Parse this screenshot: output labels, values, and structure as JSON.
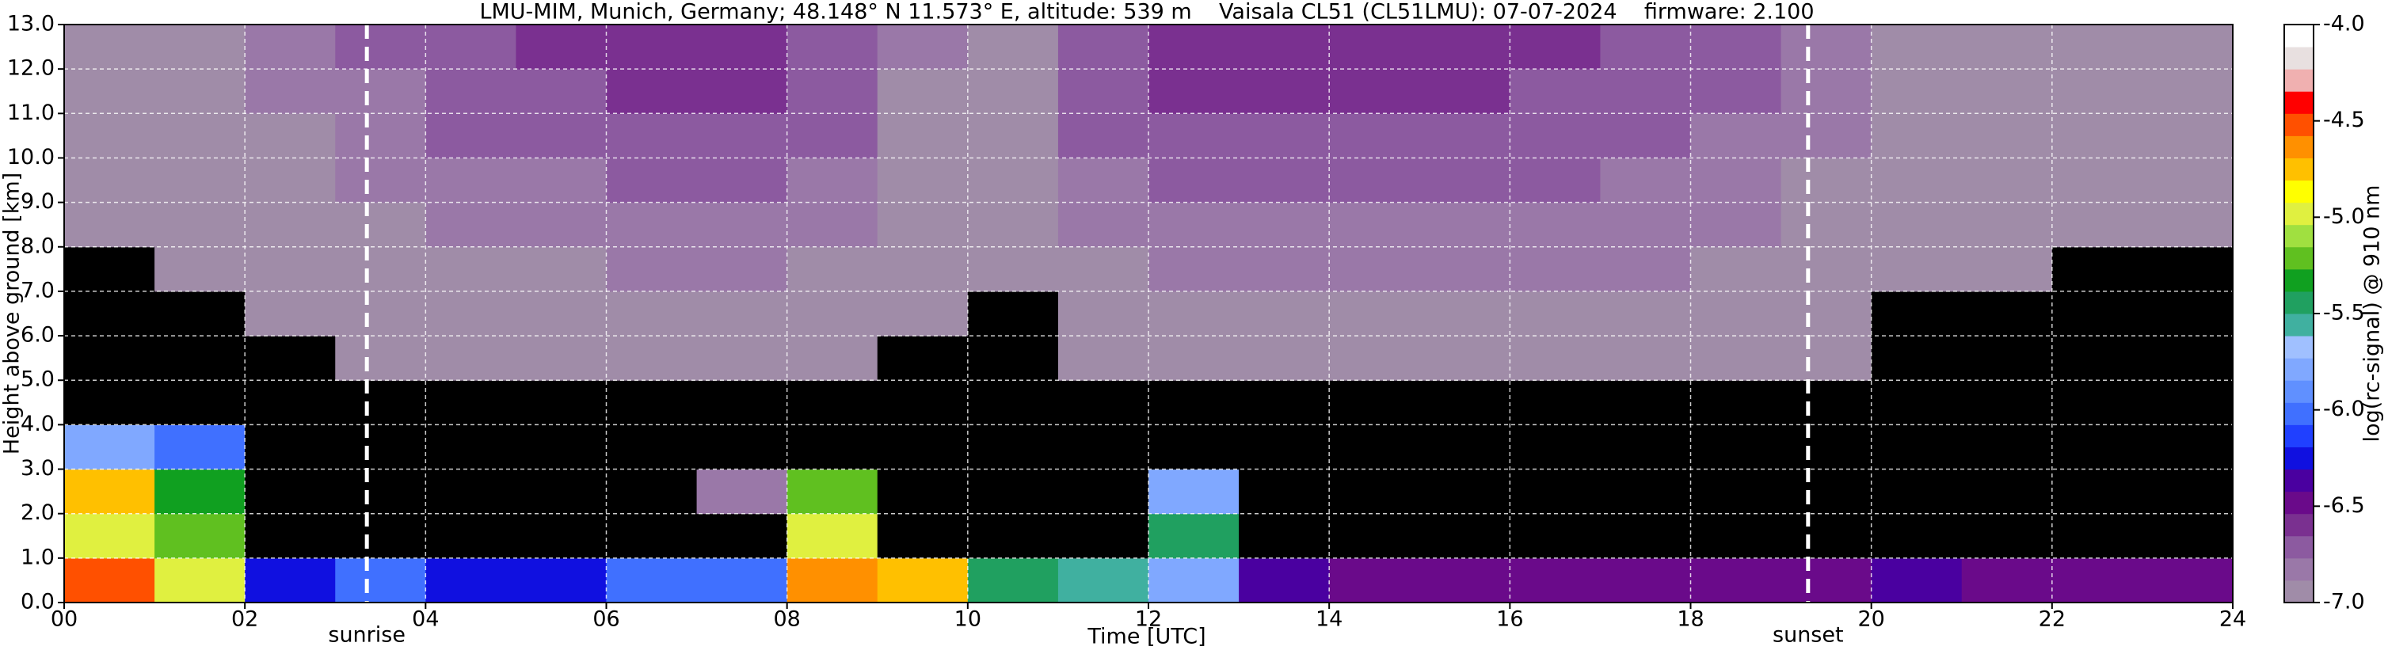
{
  "chart_data": {
    "type": "heatmap",
    "title": "LMU-MIM, Munich, Germany; 48.148° N 11.573° E, altitude: 539 m    Vaisala CL51 (CL51LMU): 07-07-2024    firmware: 2.100",
    "x_label": "Time [UTC]",
    "y_label": "Height above ground [km]",
    "colorbar_label": "log(rc-signal) @ 910 nm",
    "xlim": [
      0,
      24
    ],
    "xticks": [
      {
        "value": 0,
        "label": "00"
      },
      {
        "value": 2,
        "label": "02"
      },
      {
        "value": 4,
        "label": "04"
      },
      {
        "value": 6,
        "label": "06"
      },
      {
        "value": 8,
        "label": "08"
      },
      {
        "value": 10,
        "label": "10"
      },
      {
        "value": 12,
        "label": "12"
      },
      {
        "value": 14,
        "label": "14"
      },
      {
        "value": 16,
        "label": "16"
      },
      {
        "value": 18,
        "label": "18"
      },
      {
        "value": 20,
        "label": "20"
      },
      {
        "value": 22,
        "label": "22"
      },
      {
        "value": 24,
        "label": "24"
      }
    ],
    "ylim": [
      0,
      13
    ],
    "yticks": [
      {
        "value": 0,
        "label": "0.0"
      },
      {
        "value": 1,
        "label": "1.0"
      },
      {
        "value": 2,
        "label": "2.0"
      },
      {
        "value": 3,
        "label": "3.0"
      },
      {
        "value": 4,
        "label": "4.0"
      },
      {
        "value": 5,
        "label": "5.0"
      },
      {
        "value": 6,
        "label": "6.0"
      },
      {
        "value": 7,
        "label": "7.0"
      },
      {
        "value": 8,
        "label": "8.0"
      },
      {
        "value": 9,
        "label": "9.0"
      },
      {
        "value": 10,
        "label": "10.0"
      },
      {
        "value": 11,
        "label": "11.0"
      },
      {
        "value": 12,
        "label": "12.0"
      },
      {
        "value": 13,
        "label": "13.0"
      }
    ],
    "grid": true,
    "clim": [
      -7,
      -4
    ],
    "cbar_ticks": [
      {
        "value": -4,
        "label": "-4.0"
      },
      {
        "value": -4.5,
        "label": "-4.5"
      },
      {
        "value": -5,
        "label": "-5.0"
      },
      {
        "value": -5.5,
        "label": "-5.5"
      },
      {
        "value": -6,
        "label": "-6.0"
      },
      {
        "value": -6.5,
        "label": "-6.5"
      },
      {
        "value": -7,
        "label": "-7.0"
      }
    ],
    "under_color": "#000000",
    "colorscale": [
      "#a08ca8",
      "#9a78a8",
      "#8c5aa0",
      "#7a3090",
      "#6a0a8a",
      "#4a00a0",
      "#1010e0",
      "#2040ff",
      "#4070ff",
      "#6090ff",
      "#80a8ff",
      "#a0c0ff",
      "#40b0a0",
      "#20a060",
      "#10a020",
      "#60c020",
      "#a0e040",
      "#e0f040",
      "#ffff00",
      "#ffc000",
      "#ff9000",
      "#ff5000",
      "#ff0000",
      "#f0b0b0",
      "#e8e0e0",
      "#ffffff"
    ],
    "xbins": [
      0,
      1,
      2,
      3,
      4,
      5,
      6,
      7,
      8,
      9,
      10,
      11,
      12,
      13,
      14,
      15,
      16,
      17,
      18,
      19,
      20,
      21,
      22,
      23,
      24
    ],
    "ybins": [
      0,
      1,
      2,
      3,
      4,
      5,
      6,
      7,
      8,
      9,
      10,
      11,
      12,
      13
    ],
    "z": [
      [
        -4.5,
        -5.0,
        -6.2,
        -6.0,
        -6.3,
        -6.2,
        -6.0,
        -6.0,
        -4.6,
        -4.8,
        -5.5,
        -5.6,
        -5.8,
        -6.4,
        -6.5,
        -6.5,
        -6.5,
        -6.5,
        -6.5,
        -6.5,
        -6.4,
        -6.5,
        -6.5,
        -6.5
      ],
      [
        -5.0,
        -5.2,
        -7.5,
        -7.5,
        -7.5,
        -7.5,
        -7.5,
        -7.5,
        -5.0,
        -7.4,
        -7.5,
        -7.4,
        -5.5,
        -7.5,
        -7.5,
        -7.5,
        -7.5,
        -7.5,
        -7.5,
        -7.5,
        -7.5,
        -7.5,
        -7.5,
        -7.5
      ],
      [
        -4.8,
        -5.3,
        -7.4,
        -7.2,
        -7.4,
        -7.4,
        -7.4,
        -6.8,
        -5.2,
        -7.3,
        -7.4,
        -7.3,
        -5.8,
        -7.4,
        -7.4,
        -7.4,
        -7.4,
        -7.4,
        -7.4,
        -7.4,
        -7.4,
        -7.4,
        -7.4,
        -7.4
      ],
      [
        -5.8,
        -6.0,
        -7.3,
        -7.3,
        -7.3,
        -7.3,
        -7.3,
        -7.3,
        -7.3,
        -7.3,
        -7.3,
        -7.3,
        -7.3,
        -7.3,
        -7.3,
        -7.3,
        -7.3,
        -7.3,
        -7.3,
        -7.3,
        -7.3,
        -7.3,
        -7.3,
        -7.3
      ],
      [
        -7.2,
        -7.2,
        -7.2,
        -7.2,
        -7.1,
        -7.1,
        -7.1,
        -7.1,
        -7.1,
        -7.2,
        -7.2,
        -7.1,
        -7.1,
        -7.1,
        -7.1,
        -7.1,
        -7.1,
        -7.1,
        -7.1,
        -7.1,
        -7.2,
        -7.2,
        -7.2,
        -7.2
      ],
      [
        -7.1,
        -7.1,
        -7.1,
        -7.0,
        -7.0,
        -7.0,
        -7.0,
        -7.0,
        -7.0,
        -7.1,
        -7.1,
        -7.0,
        -7.0,
        -7.0,
        -7.0,
        -7.0,
        -7.0,
        -7.0,
        -7.0,
        -7.0,
        -7.1,
        -7.1,
        -7.1,
        -7.1
      ],
      [
        -7.1,
        -7.1,
        -7.0,
        -7.0,
        -6.9,
        -6.9,
        -6.9,
        -6.9,
        -6.9,
        -7.0,
        -7.1,
        -6.9,
        -6.9,
        -6.9,
        -6.9,
        -6.9,
        -6.9,
        -6.9,
        -6.9,
        -7.0,
        -7.1,
        -7.1,
        -7.1,
        -7.1
      ],
      [
        -7.1,
        -7.0,
        -7.0,
        -6.9,
        -6.9,
        -6.9,
        -6.8,
        -6.8,
        -6.9,
        -7.0,
        -7.0,
        -6.9,
        -6.8,
        -6.8,
        -6.8,
        -6.8,
        -6.8,
        -6.8,
        -6.9,
        -6.9,
        -7.0,
        -7.0,
        -7.1,
        -7.1
      ],
      [
        -7.0,
        -7.0,
        -6.9,
        -6.9,
        -6.8,
        -6.8,
        -6.8,
        -6.8,
        -6.8,
        -7.0,
        -7.0,
        -6.8,
        -6.8,
        -6.8,
        -6.8,
        -6.8,
        -6.8,
        -6.8,
        -6.8,
        -6.9,
        -7.0,
        -7.0,
        -7.0,
        -7.0
      ],
      [
        -7.0,
        -7.0,
        -6.9,
        -6.8,
        -6.8,
        -6.8,
        -6.7,
        -6.7,
        -6.8,
        -6.9,
        -7.0,
        -6.8,
        -6.7,
        -6.7,
        -6.7,
        -6.7,
        -6.7,
        -6.8,
        -6.8,
        -6.9,
        -7.0,
        -7.0,
        -7.0,
        -7.0
      ],
      [
        -7.0,
        -6.9,
        -6.9,
        -6.8,
        -6.7,
        -6.7,
        -6.7,
        -6.7,
        -6.7,
        -6.9,
        -6.9,
        -6.7,
        -6.7,
        -6.7,
        -6.7,
        -6.7,
        -6.7,
        -6.7,
        -6.8,
        -6.8,
        -6.9,
        -7.0,
        -7.0,
        -7.0
      ],
      [
        -6.9,
        -6.9,
        -6.8,
        -6.8,
        -6.7,
        -6.7,
        -6.6,
        -6.6,
        -6.7,
        -6.9,
        -6.9,
        -6.7,
        -6.6,
        -6.6,
        -6.6,
        -6.6,
        -6.7,
        -6.7,
        -6.7,
        -6.8,
        -6.9,
        -6.9,
        -7.0,
        -7.0
      ],
      [
        -6.9,
        -6.9,
        -6.8,
        -6.7,
        -6.7,
        -6.6,
        -6.6,
        -6.6,
        -6.7,
        -6.8,
        -6.9,
        -6.7,
        -6.6,
        -6.6,
        -6.6,
        -6.6,
        -6.6,
        -6.7,
        -6.7,
        -6.8,
        -6.9,
        -6.9,
        -6.9,
        -7.0
      ]
    ],
    "annotations": [
      {
        "text": "sunrise",
        "x": 3.35
      },
      {
        "text": "sunset",
        "x": 19.3
      }
    ]
  }
}
